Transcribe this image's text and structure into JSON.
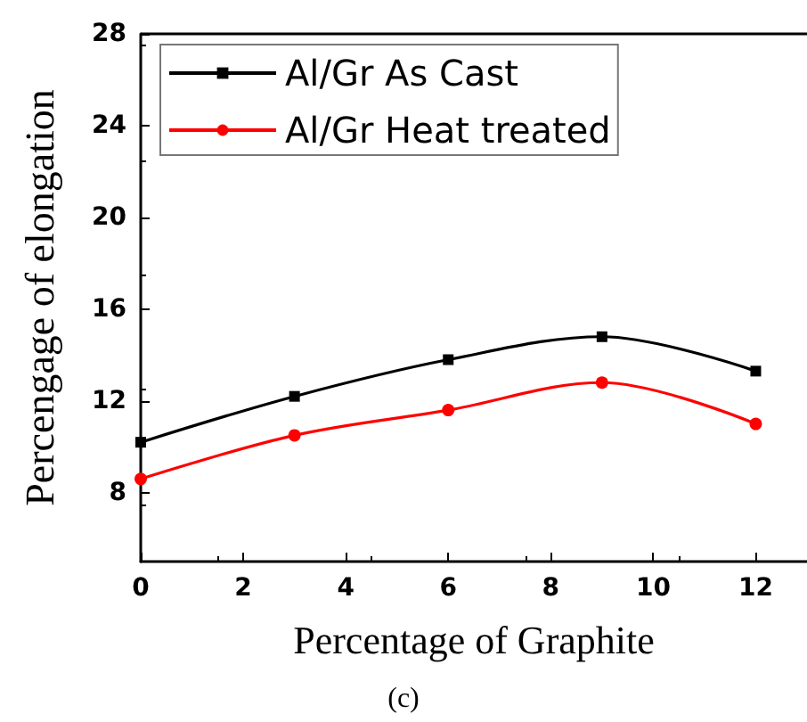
{
  "chart_data": {
    "type": "line",
    "xlabel": "Percentage of Graphite",
    "ylabel": "Percengage of elongation",
    "x": [
      0,
      3,
      6,
      9,
      12
    ],
    "series": [
      {
        "name": "Al/Gr As Cast",
        "color": "#000000",
        "values": [
          10.2,
          12.2,
          13.8,
          14.8,
          13.3
        ],
        "marker": "square"
      },
      {
        "name": "Al/Gr Heat treated",
        "color": "#ff0000",
        "values": [
          8.6,
          10.5,
          11.6,
          12.8,
          11.0
        ],
        "marker": "circle"
      }
    ],
    "xlim": [
      0,
      13
    ],
    "xticks": [
      0,
      2,
      4,
      6,
      8,
      10,
      12
    ],
    "ylim": [
      5,
      28
    ],
    "yticks": [
      8,
      12,
      16,
      20,
      24,
      28
    ],
    "grid": false,
    "legend": "top left",
    "annotations": [
      "(c)"
    ]
  }
}
